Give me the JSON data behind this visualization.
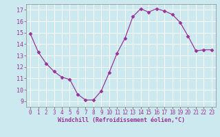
{
  "x": [
    0,
    1,
    2,
    3,
    4,
    5,
    6,
    7,
    8,
    9,
    10,
    11,
    12,
    13,
    14,
    15,
    16,
    17,
    18,
    19,
    20,
    21,
    22,
    23
  ],
  "y": [
    14.9,
    13.3,
    12.3,
    11.6,
    11.1,
    10.9,
    9.6,
    9.1,
    9.1,
    9.9,
    11.5,
    13.2,
    14.5,
    16.4,
    17.1,
    16.8,
    17.1,
    16.9,
    16.6,
    15.9,
    14.7,
    13.4,
    13.5,
    13.5
  ],
  "line_color": "#993399",
  "marker": "D",
  "marker_size": 2.5,
  "bg_color": "#cde9f0",
  "grid_color": "#ffffff",
  "xlabel": "Windchill (Refroidissement éolien,°C)",
  "xlabel_color": "#993399",
  "tick_color": "#993399",
  "ylim": [
    8.5,
    17.5
  ],
  "xlim": [
    -0.5,
    23.5
  ],
  "yticks": [
    9,
    10,
    11,
    12,
    13,
    14,
    15,
    16,
    17
  ],
  "xticks": [
    0,
    1,
    2,
    3,
    4,
    5,
    6,
    7,
    8,
    9,
    10,
    11,
    12,
    13,
    14,
    15,
    16,
    17,
    18,
    19,
    20,
    21,
    22,
    23
  ],
  "spine_color": "#888888",
  "tick_fontsize": 5.5,
  "ytick_fontsize": 6.0,
  "xlabel_fontsize": 6.0
}
